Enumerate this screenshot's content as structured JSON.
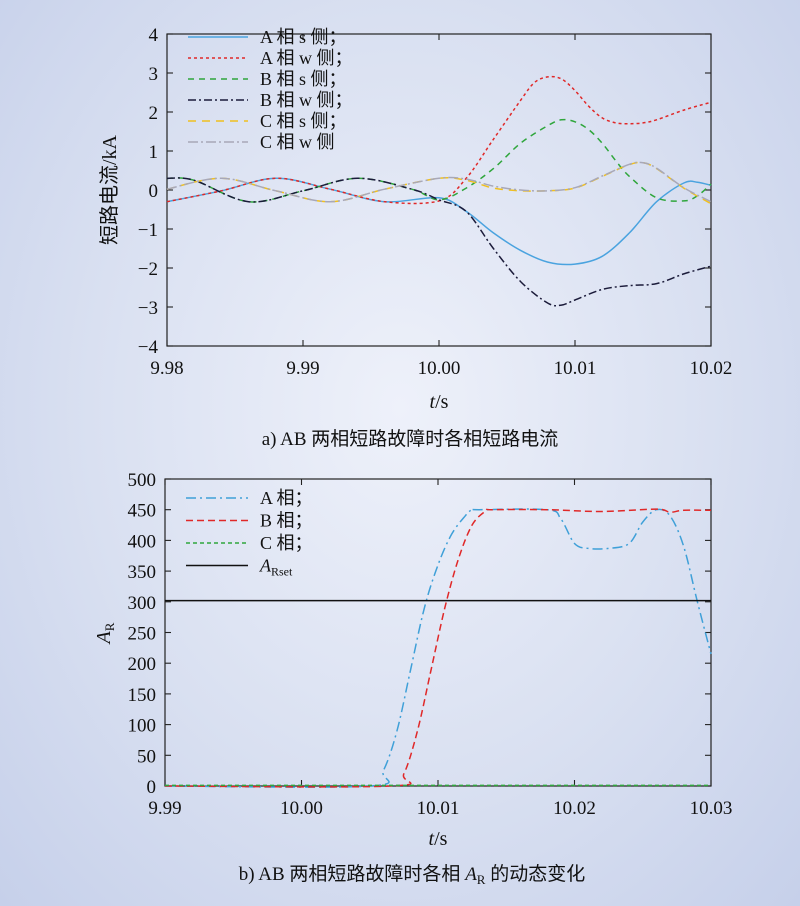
{
  "chart_data": [
    {
      "type": "line",
      "caption": "a) AB 两相短路故障时各相短路电流",
      "xlabel_italic": "t",
      "xlabel_rest": "/s",
      "ylabel": "短路电流/kA",
      "xlim": [
        9.98,
        10.02
      ],
      "ylim": [
        -4,
        4
      ],
      "xticks": [
        9.98,
        9.99,
        10.0,
        10.01,
        10.02
      ],
      "xtick_labels": [
        "9.98",
        "9.99",
        "10.00",
        "10.01",
        "10.02"
      ],
      "yticks": [
        -4,
        -3,
        -2,
        -1,
        0,
        1,
        2,
        3,
        4
      ],
      "ytick_labels": [
        "−4",
        "−3",
        "−2",
        "−1",
        "0",
        "1",
        "2",
        "3",
        "4"
      ],
      "legend_position": "top-left",
      "series": [
        {
          "name": "A 相 s 侧；",
          "color": "#4aa3df",
          "dash": "solid",
          "x": [
            9.98,
            9.984,
            9.988,
            9.992,
            9.996,
            10.0,
            10.002,
            10.004,
            10.006,
            10.008,
            10.01,
            10.012,
            10.014,
            10.016,
            10.018,
            10.019,
            10.02
          ],
          "y": [
            -0.3,
            -0.02,
            0.3,
            0.02,
            -0.3,
            -0.2,
            -0.55,
            -1.1,
            -1.55,
            -1.85,
            -1.9,
            -1.7,
            -1.1,
            -0.3,
            0.18,
            0.2,
            0.12
          ]
        },
        {
          "name": "A 相 w 侧；",
          "color": "#e02828",
          "dash": "3,3",
          "x": [
            9.98,
            9.984,
            9.988,
            9.992,
            9.996,
            10.0,
            10.002,
            10.004,
            10.006,
            10.007,
            10.008,
            10.009,
            10.01,
            10.011,
            10.012,
            10.013,
            10.014,
            10.015,
            10.016,
            10.018,
            10.02
          ],
          "y": [
            -0.3,
            -0.02,
            0.3,
            0.02,
            -0.3,
            -0.28,
            0.3,
            1.3,
            2.3,
            2.75,
            2.9,
            2.85,
            2.55,
            2.15,
            1.85,
            1.72,
            1.7,
            1.72,
            1.8,
            2.05,
            2.25
          ]
        },
        {
          "name": "B 相 s 侧；",
          "color": "#2fa63c",
          "dash": "6,5",
          "x": [
            9.98,
            9.982,
            9.986,
            9.99,
            9.994,
            9.998,
            10.0,
            10.002,
            10.004,
            10.006,
            10.008,
            10.009,
            10.01,
            10.011,
            10.012,
            10.013,
            10.014,
            10.016,
            10.018,
            10.019,
            10.02
          ],
          "y": [
            0.3,
            0.25,
            -0.3,
            -0.02,
            0.3,
            0.02,
            -0.25,
            0.05,
            0.55,
            1.2,
            1.65,
            1.8,
            1.75,
            1.55,
            1.2,
            0.75,
            0.35,
            -0.2,
            -0.28,
            -0.15,
            0.15
          ]
        },
        {
          "name": "B 相 w 侧；",
          "color": "#1b1b3a",
          "dash": "8,3,2,3",
          "x": [
            9.98,
            9.982,
            9.986,
            9.99,
            9.994,
            9.998,
            10.0,
            10.002,
            10.004,
            10.006,
            10.008,
            10.009,
            10.01,
            10.012,
            10.014,
            10.016,
            10.018,
            10.02
          ],
          "y": [
            0.3,
            0.25,
            -0.3,
            -0.02,
            0.3,
            0.02,
            -0.25,
            -0.55,
            -1.5,
            -2.35,
            -2.9,
            -2.95,
            -2.82,
            -2.55,
            -2.45,
            -2.4,
            -2.15,
            -1.95
          ]
        },
        {
          "name": "C 相 s 侧；",
          "color": "#f0c020",
          "dash": "8,6",
          "x": [
            9.98,
            9.984,
            9.988,
            9.992,
            9.996,
            10.0,
            10.002,
            10.004,
            10.006,
            10.008,
            10.01,
            10.012,
            10.014,
            10.015,
            10.016,
            10.018,
            10.02
          ],
          "y": [
            0.02,
            0.3,
            -0.02,
            -0.3,
            0.02,
            0.3,
            0.25,
            0.05,
            -0.02,
            -0.02,
            0.05,
            0.35,
            0.65,
            0.7,
            0.55,
            0.05,
            -0.35
          ]
        },
        {
          "name": "C 相 w 侧",
          "color": "#a8a8b8",
          "dash": "10,3,2,3",
          "x": [
            9.98,
            9.984,
            9.988,
            9.992,
            9.996,
            10.0,
            10.002,
            10.004,
            10.006,
            10.008,
            10.01,
            10.012,
            10.014,
            10.015,
            10.016,
            10.018,
            10.02
          ],
          "y": [
            0.02,
            0.3,
            -0.02,
            -0.3,
            0.02,
            0.3,
            0.28,
            0.1,
            0.0,
            -0.02,
            0.06,
            0.36,
            0.66,
            0.7,
            0.56,
            0.06,
            -0.3
          ]
        }
      ]
    },
    {
      "type": "line",
      "caption_pre": "b) AB 两相短路故障时各相 ",
      "caption_sym": "A",
      "caption_sub": "R",
      "caption_post": " 的动态变化",
      "xlabel_italic": "t",
      "xlabel_rest": "/s",
      "ylabel_sym": "A",
      "ylabel_sub": "R",
      "xlim": [
        9.99,
        10.03
      ],
      "ylim": [
        0,
        500
      ],
      "xticks": [
        9.99,
        10.0,
        10.01,
        10.02,
        10.03
      ],
      "xtick_labels": [
        "9.99",
        "10.00",
        "10.01",
        "10.02",
        "10.03"
      ],
      "yticks": [
        0,
        50,
        100,
        150,
        200,
        250,
        300,
        350,
        400,
        450,
        500
      ],
      "ytick_labels": [
        "0",
        "50",
        "100",
        "150",
        "200",
        "250",
        "300",
        "350",
        "400",
        "450",
        "500"
      ],
      "legend_position": "top-left",
      "series": [
        {
          "name": "A 相；",
          "color": "#3fa0d8",
          "dash": "10,4,2,4",
          "x": [
            9.99,
            10.005,
            10.006,
            10.007,
            10.008,
            10.009,
            10.01,
            10.011,
            10.012,
            10.0125,
            10.013,
            10.018,
            10.019,
            10.02,
            10.021,
            10.0225,
            10.024,
            10.025,
            10.026,
            10.027,
            10.028,
            10.029,
            10.03
          ],
          "y": [
            0,
            0,
            25,
            90,
            190,
            290,
            360,
            410,
            440,
            450,
            450,
            450,
            435,
            395,
            387,
            387,
            395,
            430,
            450,
            440,
            390,
            300,
            215
          ]
        },
        {
          "name": "B 相；",
          "color": "#e02828",
          "dash": "7,4",
          "x": [
            9.99,
            10.0065,
            10.0075,
            10.0085,
            10.0095,
            10.0105,
            10.0115,
            10.0125,
            10.0135,
            10.014,
            10.018,
            10.022,
            10.026,
            10.027,
            10.028,
            10.03
          ],
          "y": [
            0,
            0,
            20,
            90,
            190,
            290,
            370,
            425,
            448,
            450,
            450,
            447,
            451,
            446,
            449,
            449
          ]
        },
        {
          "name": "C 相；",
          "color": "#2fa63c",
          "dash": "4,3",
          "x": [
            9.99,
            10.03
          ],
          "y": [
            1,
            1
          ]
        },
        {
          "name_sym": "A",
          "name_sub": "Rset",
          "color": "#111111",
          "dash": "solid",
          "x": [
            9.99,
            10.03
          ],
          "y": [
            302,
            302
          ]
        }
      ]
    }
  ]
}
